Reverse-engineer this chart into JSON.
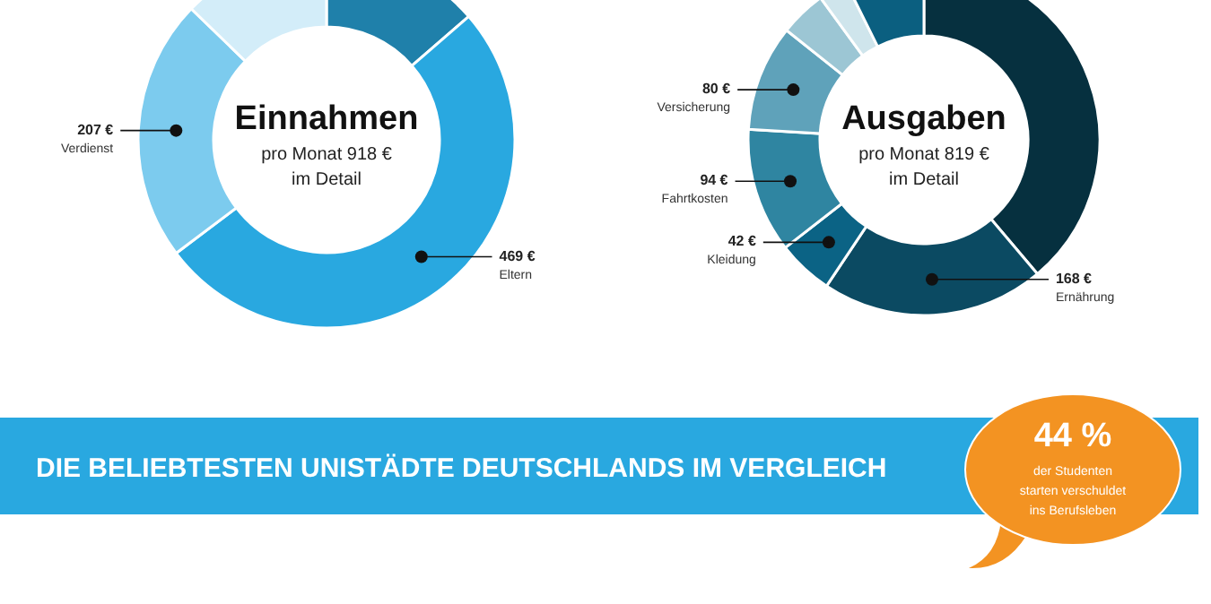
{
  "chart_data": [
    {
      "type": "donut",
      "title": "Einnahmen",
      "subtitle": "pro Monat 918 €",
      "annotations": [
        "im Detail"
      ],
      "categories": [
        null,
        "Eltern",
        "Verdienst",
        null
      ],
      "values": [
        125,
        469,
        207,
        117
      ],
      "value_labels": [
        null,
        "469 €",
        "207 €",
        null
      ],
      "colors": [
        "#1f80aa",
        "#29a8e0",
        "#7ccbee",
        "#d3edf9"
      ]
    },
    {
      "type": "donut",
      "title": "Ausgaben",
      "subtitle": "pro Monat 819 €",
      "annotations": [
        "im Detail"
      ],
      "categories": [
        null,
        "Ernährung",
        "Kleidung",
        "Fahrtkosten",
        "Versicherung",
        null,
        null,
        null
      ],
      "values": [
        318,
        168,
        42,
        94,
        80,
        35,
        22,
        60
      ],
      "value_labels": [
        null,
        "168 €",
        "42 €",
        "94 €",
        "80 €",
        null,
        null,
        null
      ],
      "colors": [
        "#06303f",
        "#0b4a62",
        "#0b6385",
        "#2f85a1",
        "#5fa2ba",
        "#9cc6d4",
        "#cfe5ec",
        "#0b5f80"
      ]
    },
    {
      "type": "other",
      "title": "DIE BELIEBTESTEN UNISTÄDTE DEUTSCHLANDS IM VERGLEICH",
      "annotations": [
        "44 %",
        "der Studenten starten verschuldet ins Berufsleben"
      ]
    }
  ]
}
